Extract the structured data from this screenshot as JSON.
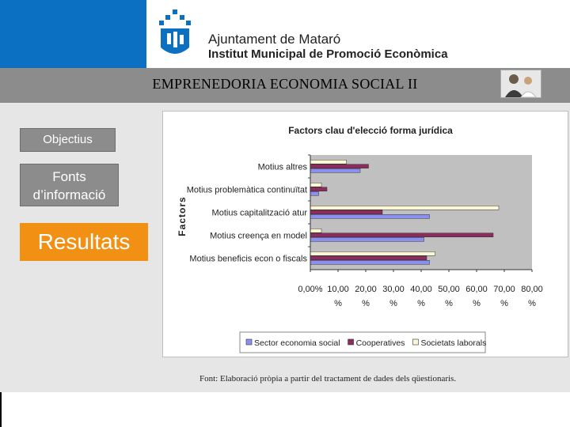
{
  "header": {
    "org_line1": "Ajuntament de Mataró",
    "org_line2": "Institut Municipal de Promoció Econòmica",
    "title": "EMPRENEDORIA ECONOMIA SOCIAL II",
    "brand_color": "#0b6fc2"
  },
  "nav": {
    "objectius": "Objectius",
    "fonts_line1": "Fonts",
    "fonts_line2": "d’informació",
    "resultats": "Resultats",
    "active_color": "#f29014"
  },
  "footer": {
    "source": "Font: Elaboració pròpia a partir del tractament de dades dels qüestionaris."
  },
  "chart_data": {
    "type": "bar",
    "orientation": "horizontal",
    "title": "Factors clau d'elecció forma jurídica",
    "ylabel": "Factors",
    "xlabel": "",
    "xlim": [
      0,
      80
    ],
    "x_ticks": [
      {
        "value": 0,
        "line1": "0,00%",
        "line2": ""
      },
      {
        "value": 10,
        "line1": "10,00",
        "line2": "%"
      },
      {
        "value": 20,
        "line1": "20,00",
        "line2": "%"
      },
      {
        "value": 30,
        "line1": "30,00",
        "line2": "%"
      },
      {
        "value": 40,
        "line1": "40,00",
        "line2": "%"
      },
      {
        "value": 50,
        "line1": "50,00",
        "line2": "%"
      },
      {
        "value": 60,
        "line1": "60,00",
        "line2": "%"
      },
      {
        "value": 70,
        "line1": "70,00",
        "line2": "%"
      },
      {
        "value": 80,
        "line1": "80,00",
        "line2": "%"
      }
    ],
    "grid": false,
    "legend_position": "bottom",
    "categories": [
      "Motius altres",
      "Motius problemàtica continuïtat",
      "Motius capitalització atur",
      "Motius creença en model",
      "Motius beneficis econ o fiscals"
    ],
    "series": [
      {
        "name": "Sector economia social",
        "color": "#8b8ff0",
        "values": [
          18,
          3,
          43,
          41,
          43
        ]
      },
      {
        "name": "Cooperatives",
        "color": "#8a2d5c",
        "values": [
          21,
          6,
          26,
          66,
          42
        ]
      },
      {
        "name": "Societats laborals",
        "color": "#fbf6d6",
        "values": [
          13,
          4,
          68,
          4,
          45
        ]
      }
    ],
    "plot_background": "#c0c0c0"
  }
}
